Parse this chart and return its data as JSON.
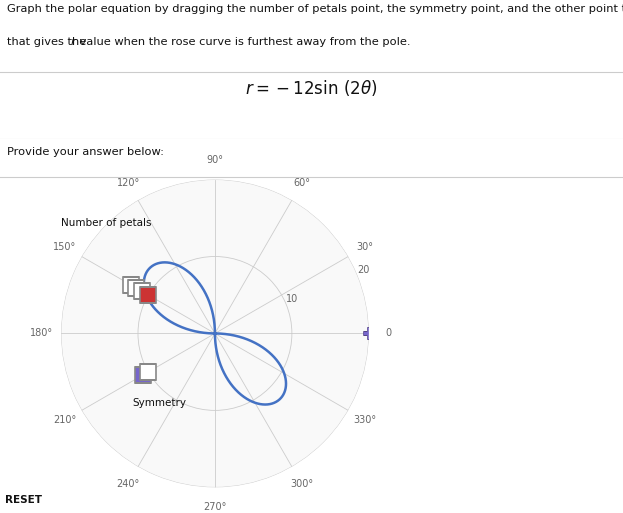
{
  "title_line1": "Graph the polar equation by dragging the number of petals point, the symmetry point, and the other point to the position",
  "title_line2": "that gives the  r  value when the rose curve is furthest away from the pole.",
  "equation_latex": "$r = -12\\sin\\,(2\\theta)$",
  "provide_text": "Provide your answer below:",
  "reset_text": "RESET",
  "bg_color": "#ffffff",
  "polar_face_color": "#f9f9f9",
  "grid_color": "#cccccc",
  "axis_line_color": "#666666",
  "curve_color": "#4472c4",
  "curve_lw": 1.8,
  "r_max": 20,
  "r_ticks": [
    10,
    20
  ],
  "angle_ticks_deg": [
    0,
    30,
    60,
    90,
    120,
    150,
    180,
    210,
    240,
    270,
    300,
    330
  ],
  "petals_point_theta_deg": 150,
  "petals_point_r": 10,
  "petals_fill_color": "#cc3333",
  "petals_label": "Number of petals",
  "symmetry_point_theta_deg": 210,
  "symmetry_point_r": 10,
  "symmetry_fill_color": "#7766cc",
  "symmetry_label": "Symmetry",
  "other_point_theta_deg": 0,
  "other_point_r": 20,
  "other_fill_color": "#7766cc",
  "fig_w": 6.23,
  "fig_h": 5.13,
  "dpi": 100
}
